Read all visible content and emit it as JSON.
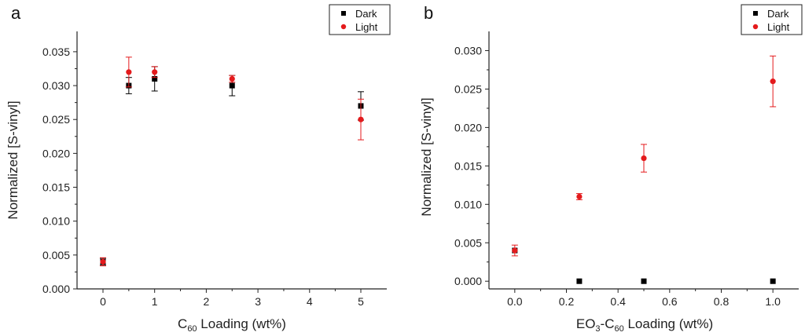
{
  "colors": {
    "dark": "#000000",
    "light": "#e41a1c",
    "axis": "#222222"
  },
  "chart_data": [
    {
      "type": "scatter",
      "panel_label": "a",
      "xlabel_main": "C",
      "xlabel_sub": "60",
      "xlabel_rest": " Loading (wt%)",
      "ylabel": "Normalized [S-vinyl]",
      "x_ticks": [
        "0",
        "1",
        "2",
        "3",
        "4",
        "5"
      ],
      "y_ticks": [
        "0.000",
        "0.005",
        "0.010",
        "0.015",
        "0.020",
        "0.025",
        "0.030",
        "0.035"
      ],
      "ylim": [
        0,
        0.038
      ],
      "legend_position": "top-right",
      "series": [
        {
          "name": "Dark",
          "marker": "square",
          "x": [
            0,
            0.5,
            1,
            2.5,
            5
          ],
          "y": [
            0.004,
            0.03,
            0.031,
            0.03,
            0.027
          ],
          "err": [
            0.0005,
            0.0012,
            0.0018,
            0.0015,
            0.0021
          ]
        },
        {
          "name": "Light",
          "marker": "circle",
          "x": [
            0,
            0.5,
            1,
            2.5,
            5
          ],
          "y": [
            0.004,
            0.032,
            0.032,
            0.031,
            0.025
          ],
          "err": [
            0.0006,
            0.0022,
            0.0008,
            0.0005,
            0.003
          ]
        }
      ]
    },
    {
      "type": "scatter",
      "panel_label": "b",
      "xlabel_main": "EO",
      "xlabel_sub": "3",
      "xlabel_mid": "-C",
      "xlabel_sub2": "60",
      "xlabel_rest": " Loading (wt%)",
      "ylabel": "Normalized [S-vinyl]",
      "x_ticks": [
        "0.0",
        "0.2",
        "0.4",
        "0.6",
        "0.8",
        "1.0"
      ],
      "y_ticks": [
        "0.000",
        "0.005",
        "0.010",
        "0.015",
        "0.020",
        "0.025",
        "0.030"
      ],
      "xlim": [
        -0.1,
        1.1
      ],
      "ylim": [
        -0.001,
        0.0325
      ],
      "legend_position": "top-right",
      "series": [
        {
          "name": "Dark",
          "marker": "square",
          "x": [
            0,
            0.25,
            0.5,
            1.0
          ],
          "y": [
            0.004,
            0.0,
            0.0,
            0.0
          ],
          "err": [
            0,
            0,
            0,
            0
          ]
        },
        {
          "name": "Light",
          "marker": "circle",
          "x": [
            0,
            0.25,
            0.5,
            1.0
          ],
          "y": [
            0.004,
            0.011,
            0.016,
            0.026
          ],
          "err": [
            0.0007,
            0.0004,
            0.0018,
            0.0033
          ]
        }
      ]
    }
  ]
}
